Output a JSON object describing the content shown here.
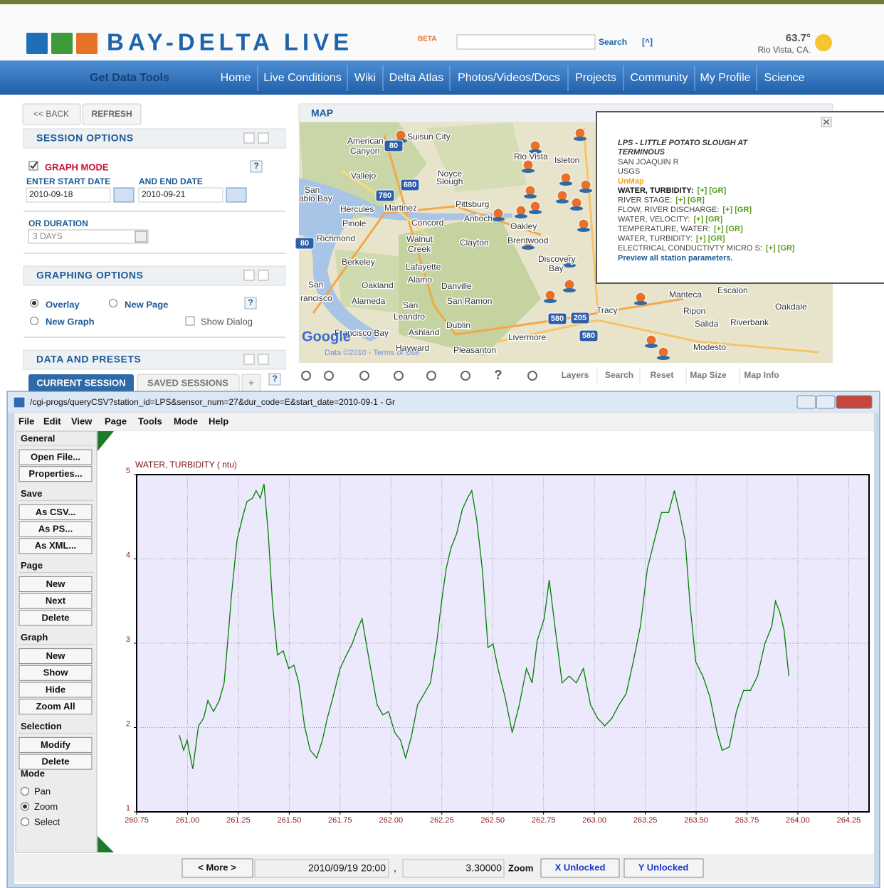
{
  "header": {
    "logo": "BAY-DELTA LIVE",
    "beta": "BETA",
    "search": "Search",
    "help": "[^]",
    "temperature": "63.7°",
    "location": "Rio Vista, CA."
  },
  "nav": [
    "Get Data Tools",
    "Home",
    "Live Conditions",
    "Wiki",
    "Delta Atlas",
    "Photos/Videos/Docs",
    "Projects",
    "Community",
    "My Profile",
    "Science"
  ],
  "left": {
    "back": "<< BACK",
    "refresh": "REFRESH",
    "session_options": "SESSION OPTIONS",
    "graph_mode": "GRAPH MODE",
    "help": "?",
    "start_label": "ENTER START DATE",
    "end_label": "AND END DATE",
    "start_date": "2010-09-18",
    "end_date": "2010-09-21",
    "duration_label": "OR DURATION",
    "duration": "3 DAYS",
    "graphing_options": "GRAPHING OPTIONS",
    "overlay": "Overlay",
    "new_page": "New Page",
    "new_graph": "New Graph",
    "show_dialog": "Show Dialog",
    "data_presets": "DATA AND PRESETS",
    "current_session": "CURRENT SESSION",
    "saved_sessions": "SAVED SESSIONS",
    "add": "+"
  },
  "map": {
    "title": "MAP",
    "places": [
      "Suisun City",
      "American",
      "Canyon",
      "Vallejo",
      "Noyce",
      "Slough",
      "San",
      "ablo Bay",
      "Hercules",
      "Martinez",
      "Pittsburg",
      "Antioch",
      "Concord",
      "Pinole",
      "Oakley",
      "Richmond",
      "Walnut",
      "Creek",
      "Clayton",
      "Brentwood",
      "Berkeley",
      "Lafayette",
      "Discovery",
      "Bay",
      "Alamo",
      "San",
      "rancisco",
      "Oakland",
      "Danville",
      "Alameda",
      "San Ramon",
      "San",
      "Leandro",
      "Tracy",
      "Manteca",
      "Escalon",
      "Oakdale",
      "Ripon",
      "Salida",
      "Riverbank",
      "Dublin",
      "Livermore",
      "Ashland",
      "Hayward",
      "Pleasanton",
      "Modesto",
      "Rio Vista",
      "Isleton",
      "Francisco Bay",
      "80",
      "680",
      "780",
      "580",
      "205",
      "580",
      "80"
    ],
    "google": "Google",
    "credit": "Data ©2010 - Terms of Use",
    "help": "?",
    "tools": [
      "Layers",
      "Search",
      "Reset",
      "Map Size",
      "Map Info"
    ]
  },
  "popup": {
    "station": [
      "LPS - LITTLE POTATO SLOUGH AT",
      "TERMINOUS"
    ],
    "river": "SAN JOAQUIN R",
    "agency": "USGS",
    "unmap": "UnMap",
    "params": [
      {
        "name": "WATER, TURBIDITY:",
        "links": "[+] [GR]"
      },
      {
        "name": "RIVER STAGE:",
        "links": "[+] [GR]"
      },
      {
        "name": "FLOW, RIVER DISCHARGE:",
        "links": "[+] [GR]"
      },
      {
        "name": "WATER, VELOCITY:",
        "links": "[+] [GR]"
      },
      {
        "name": "TEMPERATURE, WATER:",
        "links": "[+] [GR]"
      },
      {
        "name": "WATER, TURBIDITY:",
        "links": "[+] [GR]"
      },
      {
        "name": "ELECTRICAL CONDUCTIVTY MICRO S:",
        "links": "[+] [GR]"
      }
    ],
    "preview": "Preview all station parameters."
  },
  "window": {
    "title": "/cgi-progs/queryCSV?station_id=LPS&sensor_num=27&dur_code=E&start_date=2010-09-1 - Gr",
    "menu": [
      "File",
      "Edit",
      "View",
      "Page",
      "Tools",
      "Mode",
      "Help"
    ],
    "groups": [
      {
        "name": "General",
        "buttons": [
          "Open File...",
          "Properties..."
        ]
      },
      {
        "name": "Save",
        "buttons": [
          "As CSV...",
          "As PS...",
          "As XML..."
        ]
      },
      {
        "name": "Page",
        "buttons": [
          "New",
          "Next",
          "Delete"
        ]
      },
      {
        "name": "Graph",
        "buttons": [
          "New",
          "Show",
          "Hide",
          "Zoom All"
        ]
      },
      {
        "name": "Selection",
        "buttons": [
          "Modify",
          "Delete"
        ]
      }
    ],
    "mode": {
      "name": "Mode",
      "options": [
        "Pan",
        "Zoom",
        "Select"
      ]
    },
    "status": {
      "more": "< More >",
      "time": "2010/09/19 20:00",
      "sep": ",",
      "value": "3.30000",
      "zoom": "Zoom",
      "x": "X Unlocked",
      "y": "Y Unlocked"
    }
  },
  "chart_data": {
    "type": "line",
    "title": "WATER, TURBIDITY ( ntu)",
    "color": "#008000",
    "grid": true,
    "x": [
      260.96,
      260.981,
      260.998,
      261.026,
      261.054,
      261.079,
      261.1,
      261.128,
      261.156,
      261.18,
      261.201,
      261.215,
      261.243,
      261.268,
      261.292,
      261.32,
      261.337,
      261.358,
      261.376,
      261.397,
      261.418,
      261.442,
      261.47,
      261.498,
      261.523,
      261.547,
      261.575,
      261.603,
      261.635,
      261.663,
      261.687,
      261.715,
      261.75,
      261.781,
      261.809,
      261.834,
      261.858,
      261.879,
      261.907,
      261.932,
      261.96,
      261.988,
      262.019,
      262.047,
      262.072,
      262.1,
      262.131,
      262.163,
      262.194,
      262.226,
      262.247,
      262.271,
      262.295,
      262.323,
      262.351,
      262.376,
      262.397,
      262.421,
      262.449,
      262.477,
      262.502,
      262.526,
      262.561,
      262.596,
      262.631,
      262.666,
      262.694,
      262.719,
      262.753,
      262.778,
      262.806,
      262.841,
      262.876,
      262.911,
      262.946,
      262.981,
      263.016,
      263.051,
      263.086,
      263.121,
      263.156,
      263.191,
      263.226,
      263.26,
      263.295,
      263.33,
      263.365,
      263.393,
      263.418,
      263.446,
      263.47,
      263.498,
      263.533,
      263.568,
      263.603,
      263.628,
      263.663,
      263.698,
      263.733,
      263.767,
      263.802,
      263.837,
      263.872,
      263.89,
      263.911,
      263.932,
      263.956
    ],
    "values": [
      1.91,
      1.73,
      1.85,
      1.51,
      2.02,
      2.11,
      2.32,
      2.19,
      2.32,
      2.53,
      3.12,
      3.54,
      4.22,
      4.47,
      4.68,
      4.72,
      4.81,
      4.72,
      4.89,
      4.3,
      3.46,
      2.86,
      2.91,
      2.7,
      2.74,
      2.53,
      2.02,
      1.73,
      1.64,
      1.85,
      2.11,
      2.36,
      2.7,
      2.86,
      2.99,
      3.16,
      3.29,
      2.99,
      2.61,
      2.27,
      2.15,
      2.19,
      1.94,
      1.85,
      1.64,
      1.89,
      2.27,
      2.4,
      2.53,
      3.03,
      3.46,
      3.88,
      4.13,
      4.3,
      4.59,
      4.72,
      4.81,
      4.47,
      3.88,
      2.95,
      2.99,
      2.7,
      2.36,
      1.94,
      2.27,
      2.7,
      2.53,
      3.03,
      3.29,
      3.75,
      3.2,
      2.53,
      2.61,
      2.53,
      2.7,
      2.27,
      2.11,
      2.02,
      2.11,
      2.27,
      2.4,
      2.78,
      3.2,
      3.88,
      4.22,
      4.55,
      4.55,
      4.81,
      4.55,
      4.22,
      3.46,
      2.78,
      2.61,
      2.36,
      1.94,
      1.73,
      1.77,
      2.19,
      2.44,
      2.44,
      2.61,
      2.99,
      3.2,
      3.5,
      3.37,
      3.16,
      2.61
    ],
    "xlim": [
      260.75,
      264.35
    ],
    "ylim": [
      1,
      5
    ],
    "xticks": [
      260.75,
      {
        "value": 261,
        "label": "261.00"
      },
      261.25,
      {
        "value": 261.5,
        "label": "261.50"
      },
      261.75,
      {
        "value": 262,
        "label": "262.00"
      },
      262.25,
      {
        "value": 262.5,
        "label": "262.50"
      },
      262.75,
      {
        "value": 263,
        "label": "263.00"
      },
      263.25,
      {
        "value": 263.5,
        "label": "263.50"
      },
      263.75,
      {
        "value": 264,
        "label": "264.00"
      },
      264.25
    ],
    "yticks": [
      1,
      2,
      3,
      4,
      5
    ]
  }
}
